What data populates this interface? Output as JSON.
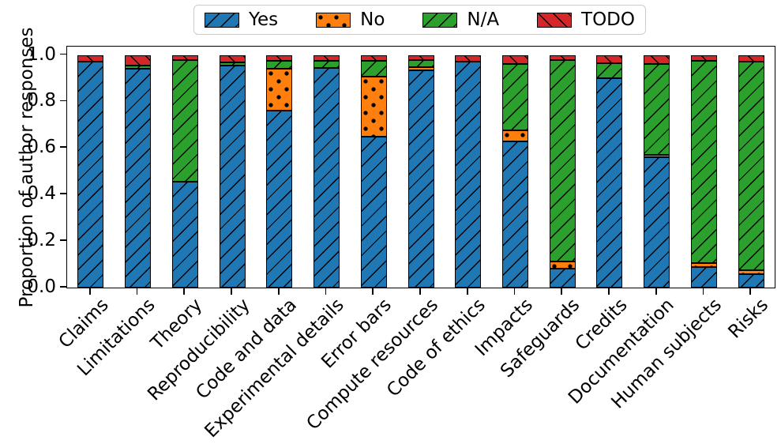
{
  "chart_data": {
    "type": "stacked-bar",
    "title": "",
    "ylabel": "Proportion of author responses",
    "xlabel": "",
    "ylim": [
      0.0,
      1.04
    ],
    "yticks": [
      "0.0",
      "0.2",
      "0.4",
      "0.6",
      "0.8",
      "1.0"
    ],
    "grid": false,
    "legend_position": "top-center",
    "categories": [
      "Claims",
      "Limitations",
      "Theory",
      "Reproducibility",
      "Code and data",
      "Experimental details",
      "Error bars",
      "Compute resources",
      "Code of ethics",
      "Impacts",
      "Safeguards",
      "Credits",
      "Documentation",
      "Human subjects",
      "Risks"
    ],
    "series": [
      {
        "name": "Yes",
        "color": "#1f77b4",
        "hatch": "/",
        "values": [
          0.97,
          0.94,
          0.455,
          0.955,
          0.76,
          0.945,
          0.65,
          0.935,
          0.97,
          0.63,
          0.081,
          0.9,
          0.56,
          0.09,
          0.059
        ]
      },
      {
        "name": "No",
        "color": "#ff7f0e",
        "hatch": ".",
        "values": [
          0,
          0,
          0,
          0,
          0.18,
          0,
          0.257,
          0.014,
          0,
          0.045,
          0.031,
          0,
          0.012,
          0.014,
          0.016
        ]
      },
      {
        "name": "N/A",
        "color": "#2ca02c",
        "hatch": "/",
        "values": [
          0,
          0.013,
          0.525,
          0.013,
          0.035,
          0.03,
          0.068,
          0.031,
          0,
          0.285,
          0.868,
          0.066,
          0.391,
          0.871,
          0.897
        ]
      },
      {
        "name": "TODO",
        "color": "#d62728",
        "hatch": "\\",
        "values": [
          0.03,
          0.047,
          0.02,
          0.032,
          0.025,
          0.025,
          0.025,
          0.02,
          0.03,
          0.04,
          0.02,
          0.034,
          0.037,
          0.025,
          0.028
        ]
      }
    ]
  }
}
